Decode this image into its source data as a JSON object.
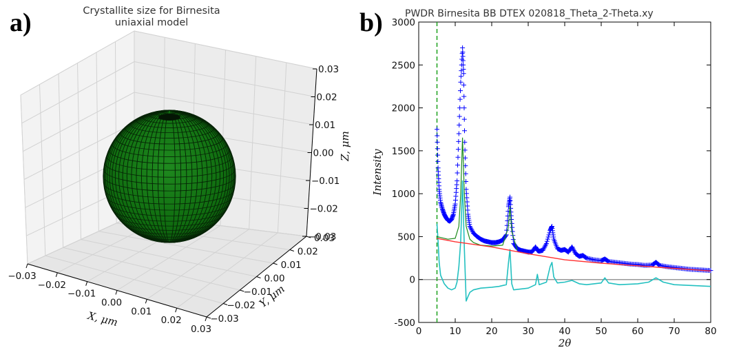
{
  "panel_labels": {
    "a": "a)",
    "b": "b)"
  },
  "chart_data": [
    {
      "type": "surface3d",
      "title_lines": [
        "Crystallite size for Birnesita",
        "uniaxial model"
      ],
      "xlabel": "X, μm",
      "ylabel": "Y, μm",
      "zlabel": "Z, μm",
      "x_ticks": [
        "−0.03",
        "−0.02",
        "−0.01",
        "0.00",
        "0.01",
        "0.02",
        "0.03"
      ],
      "y_ticks": [
        "−0.03",
        "−0.02",
        "−0.01",
        "0.00",
        "0.01",
        "0.02",
        "0.03"
      ],
      "z_ticks": [
        "−0.03",
        "−0.02",
        "−0.01",
        "0.00",
        "0.01",
        "0.02",
        "0.03"
      ],
      "surface": "sphere",
      "surface_color": "#0f6b0f",
      "grid": true
    },
    {
      "type": "line",
      "title": "PWDR Birnesita BB DTEX 020818_Theta_2-Theta.xy",
      "xlabel": "2θ",
      "ylabel": "Intensity",
      "xlim": [
        0,
        80
      ],
      "ylim": [
        -500,
        3000
      ],
      "x_ticks": [
        0,
        10,
        20,
        30,
        40,
        50,
        60,
        70,
        80
      ],
      "y_ticks": [
        -500,
        0,
        500,
        1000,
        1500,
        2000,
        2500,
        3000
      ],
      "colors": {
        "observed": "#0000ff",
        "calculated": "#1a8a1a",
        "background": "#ff3030",
        "difference": "#22c0c0",
        "zero_line": "#999999",
        "limit_line": "#1aa01a"
      },
      "lower_limit": 5,
      "series": [
        {
          "role": "observed",
          "marker": "+",
          "x": [
            5.0,
            5.3,
            5.6,
            6.0,
            6.5,
            7.0,
            7.5,
            8.0,
            8.5,
            9.0,
            9.5,
            10.0,
            10.5,
            11.0,
            11.5,
            12.0,
            12.3,
            12.6,
            13.0,
            13.5,
            14.0,
            15.0,
            16.0,
            17.0,
            18.0,
            19.0,
            20.0,
            21.0,
            22.0,
            23.0,
            24.0,
            24.6,
            25.0,
            25.4,
            26.0,
            27.0,
            28.0,
            29.0,
            30.0,
            31.0,
            32.0,
            32.5,
            33.0,
            34.0,
            35.0,
            36.0,
            36.5,
            37.0,
            38.0,
            39.0,
            40.0,
            41.0,
            42.0,
            43.0,
            44.0,
            45.0,
            46.0,
            48.0,
            50.0,
            51.0,
            52.0,
            54.0,
            56.0,
            58.0,
            60.0,
            62.0,
            64.0,
            65.0,
            66.0,
            68.0,
            70.0,
            72.0,
            74.0,
            76.0,
            78.0,
            80.0
          ],
          "y": [
            1750,
            1300,
            1050,
            900,
            820,
            760,
            720,
            690,
            680,
            700,
            760,
            880,
            1150,
            1700,
            2300,
            2700,
            2400,
            1600,
            1050,
            760,
            620,
            540,
            500,
            470,
            450,
            440,
            430,
            430,
            440,
            460,
            520,
            850,
            960,
            700,
            420,
            360,
            340,
            330,
            320,
            320,
            380,
            340,
            330,
            340,
            420,
            570,
            620,
            470,
            360,
            340,
            350,
            320,
            380,
            300,
            270,
            280,
            250,
            230,
            220,
            240,
            210,
            200,
            190,
            180,
            175,
            165,
            170,
            200,
            165,
            150,
            140,
            130,
            120,
            115,
            110,
            105
          ]
        },
        {
          "role": "calculated",
          "x": [
            5.0,
            6.0,
            8.0,
            10.0,
            11.0,
            11.5,
            12.0,
            12.5,
            13.0,
            14.0,
            15.0,
            17.0,
            20.0,
            23.0,
            24.5,
            25.0,
            25.5,
            27.0
          ],
          "y": [
            500,
            490,
            470,
            480,
            620,
            1000,
            1650,
            1000,
            620,
            470,
            430,
            400,
            390,
            400,
            600,
            850,
            560,
            340
          ]
        },
        {
          "role": "background",
          "x": [
            5.0,
            10.0,
            20.0,
            30.0,
            40.0,
            50.0,
            60.0,
            70.0,
            80.0
          ],
          "y": [
            480,
            440,
            380,
            300,
            230,
            190,
            160,
            130,
            100
          ]
        },
        {
          "role": "difference",
          "x": [
            5.0,
            5.3,
            5.6,
            6.0,
            7.0,
            8.0,
            9.0,
            10.0,
            10.5,
            11.0,
            11.5,
            12.0,
            12.5,
            13.0,
            13.5,
            14.0,
            15.0,
            17.0,
            20.0,
            22.0,
            24.0,
            24.6,
            25.0,
            25.5,
            26.0,
            28.0,
            30.0,
            32.0,
            32.5,
            33.0,
            35.0,
            36.0,
            36.5,
            37.0,
            38.0,
            40.0,
            42.0,
            44.0,
            46.0,
            48.0,
            50.0,
            51.0,
            52.0,
            55.0,
            60.0,
            63.0,
            65.0,
            67.0,
            70.0,
            75.0,
            80.0
          ],
          "y": [
            650,
            450,
            200,
            50,
            -50,
            -100,
            -120,
            -100,
            -30,
            150,
            450,
            1150,
            350,
            -250,
            -200,
            -150,
            -120,
            -100,
            -90,
            -80,
            -60,
            200,
            350,
            -50,
            -120,
            -110,
            -100,
            -60,
            60,
            -60,
            -30,
            150,
            200,
            30,
            -40,
            -30,
            -10,
            -50,
            -60,
            -50,
            -40,
            20,
            -40,
            -60,
            -50,
            -30,
            20,
            -30,
            -60,
            -70,
            -80
          ]
        }
      ]
    }
  ]
}
